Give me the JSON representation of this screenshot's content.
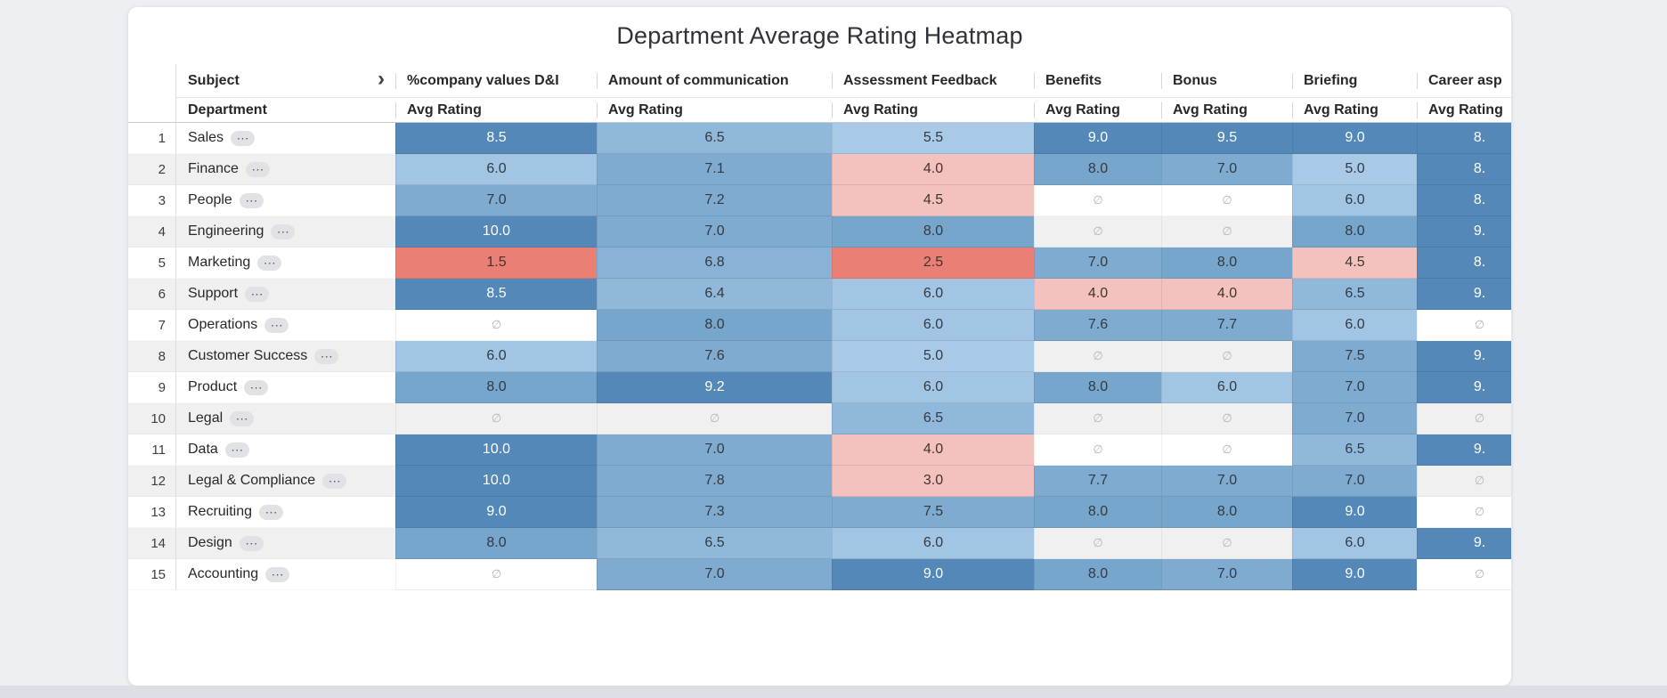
{
  "title": "Department Average Rating Heatmap",
  "table": {
    "corner_header": "Subject",
    "row_header": "Department",
    "metric_label": "Avg Rating",
    "empty_symbol": "∅",
    "more_symbol": "⋯",
    "chevron_symbol": "›",
    "columns": [
      "%company values D&I",
      "Amount of communication",
      "Assessment Feedback",
      "Benefits",
      "Bonus",
      "Briefing",
      "Career asp"
    ],
    "rows": [
      {
        "num": "1",
        "name": "Sales",
        "values": [
          "8.5",
          "6.5",
          "5.5",
          "9.0",
          "9.5",
          "9.0",
          "8."
        ]
      },
      {
        "num": "2",
        "name": "Finance",
        "values": [
          "6.0",
          "7.1",
          "4.0",
          "8.0",
          "7.0",
          "5.0",
          "8."
        ]
      },
      {
        "num": "3",
        "name": "People",
        "values": [
          "7.0",
          "7.2",
          "4.5",
          "∅",
          "∅",
          "6.0",
          "8."
        ]
      },
      {
        "num": "4",
        "name": "Engineering",
        "values": [
          "10.0",
          "7.0",
          "8.0",
          "∅",
          "∅",
          "8.0",
          "9."
        ]
      },
      {
        "num": "5",
        "name": "Marketing",
        "values": [
          "1.5",
          "6.8",
          "2.5",
          "7.0",
          "8.0",
          "4.5",
          "8."
        ]
      },
      {
        "num": "6",
        "name": "Support",
        "values": [
          "8.5",
          "6.4",
          "6.0",
          "4.0",
          "4.0",
          "6.5",
          "9."
        ]
      },
      {
        "num": "7",
        "name": "Operations",
        "values": [
          "∅",
          "8.0",
          "6.0",
          "7.6",
          "7.7",
          "6.0",
          "∅"
        ]
      },
      {
        "num": "8",
        "name": "Customer Success",
        "values": [
          "6.0",
          "7.6",
          "5.0",
          "∅",
          "∅",
          "7.5",
          "9."
        ]
      },
      {
        "num": "9",
        "name": "Product",
        "values": [
          "8.0",
          "9.2",
          "6.0",
          "8.0",
          "6.0",
          "7.0",
          "9."
        ]
      },
      {
        "num": "10",
        "name": "Legal",
        "values": [
          "∅",
          "∅",
          "6.5",
          "∅",
          "∅",
          "7.0",
          "∅"
        ]
      },
      {
        "num": "11",
        "name": "Data",
        "values": [
          "10.0",
          "7.0",
          "4.0",
          "∅",
          "∅",
          "6.5",
          "9."
        ]
      },
      {
        "num": "12",
        "name": "Legal & Compliance",
        "values": [
          "10.0",
          "7.8",
          "3.0",
          "7.7",
          "7.0",
          "7.0",
          "∅"
        ]
      },
      {
        "num": "13",
        "name": "Recruiting",
        "values": [
          "9.0",
          "7.3",
          "7.5",
          "8.0",
          "8.0",
          "9.0",
          "∅"
        ]
      },
      {
        "num": "14",
        "name": "Design",
        "values": [
          "8.0",
          "6.5",
          "6.0",
          "∅",
          "∅",
          "6.0",
          "9."
        ]
      },
      {
        "num": "15",
        "name": "Accounting",
        "values": [
          "∅",
          "7.0",
          "9.0",
          "8.0",
          "7.0",
          "9.0",
          "∅"
        ]
      }
    ]
  },
  "heatmap": {
    "stops": [
      {
        "max": 2.9,
        "bg": "#ea8075",
        "text": "#41342f"
      },
      {
        "max": 4.7,
        "bg": "#f4c2be",
        "text": "#41342f"
      },
      {
        "max": 5.7,
        "bg": "#a9cae6",
        "text": "#333a41"
      },
      {
        "max": 6.2,
        "bg": "#a2c5e3",
        "text": "#333a41"
      },
      {
        "max": 6.6,
        "bg": "#8fb8da",
        "text": "#333a41"
      },
      {
        "max": 6.9,
        "bg": "#88b2d6",
        "text": "#333a41"
      },
      {
        "max": 7.9,
        "bg": "#7fabd1",
        "text": "#333a41"
      },
      {
        "max": 8.2,
        "bg": "#77a6cd",
        "text": "#333a41"
      },
      {
        "max": 10.0,
        "bg": "#5488b8",
        "text": "#ffffff"
      }
    ],
    "empty_text_color": "#b3b6bb"
  },
  "colors": {
    "page_bg": "#edeff3",
    "card_bg": "#ffffff",
    "bottom_strip": "#dce0e6"
  }
}
